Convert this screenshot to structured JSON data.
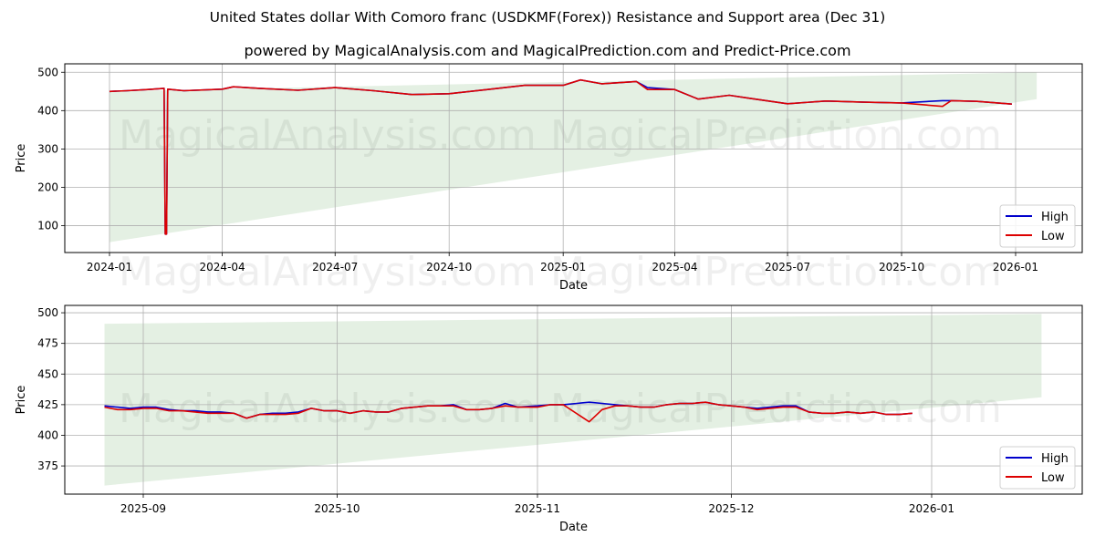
{
  "header": {
    "title": "United States dollar With Comoro franc (USDKMF(Forex)) Resistance and Support area (Dec 31)",
    "subtitle": "powered by MagicalAnalysis.com and MagicalPrediction.com and Predict-Price.com"
  },
  "watermarks": [
    "MagicalAnalysis.com",
    "MagicalPrediction.com"
  ],
  "colors": {
    "high": "#0000cc",
    "low": "#dd0000",
    "band": "#d5e8d4",
    "grid": "#b0b0b0"
  },
  "chart_data": [
    {
      "type": "line",
      "title": "",
      "xlabel": "Date",
      "ylabel": "Price",
      "x_ticks": [
        "2024-01",
        "2024-04",
        "2024-07",
        "2024-10",
        "2025-01",
        "2025-04",
        "2025-07",
        "2025-10",
        "2026-01"
      ],
      "y_ticks": [
        100,
        200,
        300,
        400,
        500
      ],
      "ylim": [
        30,
        522
      ],
      "grid": true,
      "legend": {
        "position": "lower right",
        "entries": [
          "High",
          "Low"
        ]
      },
      "band": {
        "description": "Resistance and Support area",
        "start": {
          "x": "2024-01",
          "upper": 450,
          "lower": 57
        },
        "end": {
          "x": "2026-01-18",
          "upper": 500,
          "lower": 430
        }
      },
      "series": [
        {
          "name": "High",
          "x": [
            "2024-01",
            "2024-01-15",
            "2024-02-01",
            "2024-02-14",
            "2024-02-15",
            "2024-02-16",
            "2024-02-17",
            "2024-03-01",
            "2024-04-01",
            "2024-04-10",
            "2024-05-01",
            "2024-06-01",
            "2024-07-01",
            "2024-08-01",
            "2024-09-01",
            "2024-10-01",
            "2024-11-01",
            "2024-12-01",
            "2025-01-01",
            "2025-01-15",
            "2025-02-01",
            "2025-03-01",
            "2025-03-10",
            "2025-04-01",
            "2025-04-20",
            "2025-05-15",
            "2025-06-01",
            "2025-07-01",
            "2025-08-01",
            "2025-09-01",
            "2025-10-01",
            "2025-11-03",
            "2025-11-10",
            "2025-12-01",
            "2025-12-29"
          ],
          "values": [
            450,
            452,
            455,
            458,
            78,
            78,
            456,
            452,
            456,
            462,
            458,
            453,
            460,
            452,
            442,
            444,
            455,
            466,
            466,
            480,
            470,
            476,
            460,
            455,
            430,
            440,
            432,
            418,
            425,
            422,
            420,
            426,
            426,
            424,
            417
          ]
        },
        {
          "name": "Low",
          "x": [
            "2024-01",
            "2024-01-15",
            "2024-02-01",
            "2024-02-14",
            "2024-02-15",
            "2024-02-16",
            "2024-02-17",
            "2024-03-01",
            "2024-04-01",
            "2024-04-10",
            "2024-05-01",
            "2024-06-01",
            "2024-07-01",
            "2024-08-01",
            "2024-09-01",
            "2024-10-01",
            "2024-11-01",
            "2024-12-01",
            "2025-01-01",
            "2025-01-15",
            "2025-02-01",
            "2025-03-01",
            "2025-03-10",
            "2025-04-01",
            "2025-04-20",
            "2025-05-15",
            "2025-06-01",
            "2025-07-01",
            "2025-08-01",
            "2025-09-01",
            "2025-10-01",
            "2025-11-03",
            "2025-11-10",
            "2025-12-01",
            "2025-12-29"
          ],
          "values": [
            450,
            452,
            455,
            458,
            78,
            78,
            456,
            452,
            456,
            462,
            458,
            453,
            460,
            452,
            442,
            444,
            455,
            466,
            466,
            480,
            470,
            476,
            455,
            455,
            430,
            440,
            432,
            418,
            425,
            422,
            420,
            411,
            426,
            424,
            417
          ]
        }
      ]
    },
    {
      "type": "line",
      "title": "",
      "xlabel": "Date",
      "ylabel": "Price",
      "x_ticks": [
        "2025-09",
        "2025-10",
        "2025-11",
        "2025-12",
        "2026-01"
      ],
      "y_ticks": [
        375,
        400,
        425,
        450,
        475,
        500
      ],
      "ylim": [
        352,
        506
      ],
      "grid": true,
      "legend": {
        "position": "lower right",
        "entries": [
          "High",
          "Low"
        ]
      },
      "band": {
        "description": "Resistance and Support area",
        "start": {
          "x": "2025-08-26",
          "upper": 491,
          "lower": 359
        },
        "end": {
          "x": "2026-01-18",
          "upper": 499,
          "lower": 431
        }
      },
      "series": [
        {
          "name": "High",
          "x": [
            "2025-08-26",
            "2025-08-28",
            "2025-08-30",
            "2025-09-01",
            "2025-09-03",
            "2025-09-05",
            "2025-09-07",
            "2025-09-09",
            "2025-09-11",
            "2025-09-13",
            "2025-09-15",
            "2025-09-17",
            "2025-09-19",
            "2025-09-21",
            "2025-09-23",
            "2025-09-25",
            "2025-09-27",
            "2025-09-29",
            "2025-10-01",
            "2025-10-03",
            "2025-10-05",
            "2025-10-07",
            "2025-10-09",
            "2025-10-11",
            "2025-10-13",
            "2025-10-15",
            "2025-10-17",
            "2025-10-19",
            "2025-10-21",
            "2025-10-23",
            "2025-10-25",
            "2025-10-27",
            "2025-10-29",
            "2025-11-01",
            "2025-11-03",
            "2025-11-05",
            "2025-11-09",
            "2025-11-11",
            "2025-11-13",
            "2025-11-15",
            "2025-11-17",
            "2025-11-19",
            "2025-11-21",
            "2025-11-23",
            "2025-11-25",
            "2025-11-27",
            "2025-11-29",
            "2025-12-01",
            "2025-12-03",
            "2025-12-05",
            "2025-12-07",
            "2025-12-09",
            "2025-12-11",
            "2025-12-13",
            "2025-12-15",
            "2025-12-17",
            "2025-12-19",
            "2025-12-21",
            "2025-12-23",
            "2025-12-25",
            "2025-12-27",
            "2025-12-29"
          ],
          "values": [
            424,
            423,
            422,
            423,
            423,
            421,
            420,
            420,
            419,
            419,
            418,
            414,
            417,
            418,
            418,
            419,
            422,
            420,
            420,
            418,
            420,
            419,
            419,
            422,
            423,
            424,
            424,
            425,
            421,
            421,
            422,
            426,
            423,
            424,
            425,
            425,
            427,
            426,
            425,
            424,
            423,
            423,
            425,
            426,
            426,
            427,
            425,
            424,
            423,
            422,
            423,
            424,
            424,
            419,
            418,
            418,
            419,
            418,
            419,
            417,
            417,
            418
          ]
        },
        {
          "name": "Low",
          "x": [
            "2025-08-26",
            "2025-08-28",
            "2025-08-30",
            "2025-09-01",
            "2025-09-03",
            "2025-09-05",
            "2025-09-07",
            "2025-09-09",
            "2025-09-11",
            "2025-09-13",
            "2025-09-15",
            "2025-09-17",
            "2025-09-19",
            "2025-09-21",
            "2025-09-23",
            "2025-09-25",
            "2025-09-27",
            "2025-09-29",
            "2025-10-01",
            "2025-10-03",
            "2025-10-05",
            "2025-10-07",
            "2025-10-09",
            "2025-10-11",
            "2025-10-13",
            "2025-10-15",
            "2025-10-17",
            "2025-10-19",
            "2025-10-21",
            "2025-10-23",
            "2025-10-25",
            "2025-10-27",
            "2025-10-29",
            "2025-11-01",
            "2025-11-03",
            "2025-11-05",
            "2025-11-09",
            "2025-11-11",
            "2025-11-13",
            "2025-11-15",
            "2025-11-17",
            "2025-11-19",
            "2025-11-21",
            "2025-11-23",
            "2025-11-25",
            "2025-11-27",
            "2025-11-29",
            "2025-12-01",
            "2025-12-03",
            "2025-12-05",
            "2025-12-07",
            "2025-12-09",
            "2025-12-11",
            "2025-12-13",
            "2025-12-15",
            "2025-12-17",
            "2025-12-19",
            "2025-12-21",
            "2025-12-23",
            "2025-12-25",
            "2025-12-27",
            "2025-12-29"
          ],
          "values": [
            423,
            421,
            421,
            422,
            422,
            420,
            420,
            419,
            418,
            418,
            418,
            414,
            417,
            417,
            417,
            418,
            422,
            420,
            420,
            418,
            420,
            419,
            419,
            422,
            423,
            424,
            424,
            424,
            421,
            421,
            422,
            424,
            423,
            423,
            425,
            425,
            411,
            421,
            424,
            424,
            423,
            423,
            425,
            426,
            426,
            427,
            425,
            424,
            423,
            421,
            422,
            423,
            423,
            419,
            418,
            418,
            419,
            418,
            419,
            417,
            417,
            418
          ]
        }
      ]
    }
  ]
}
